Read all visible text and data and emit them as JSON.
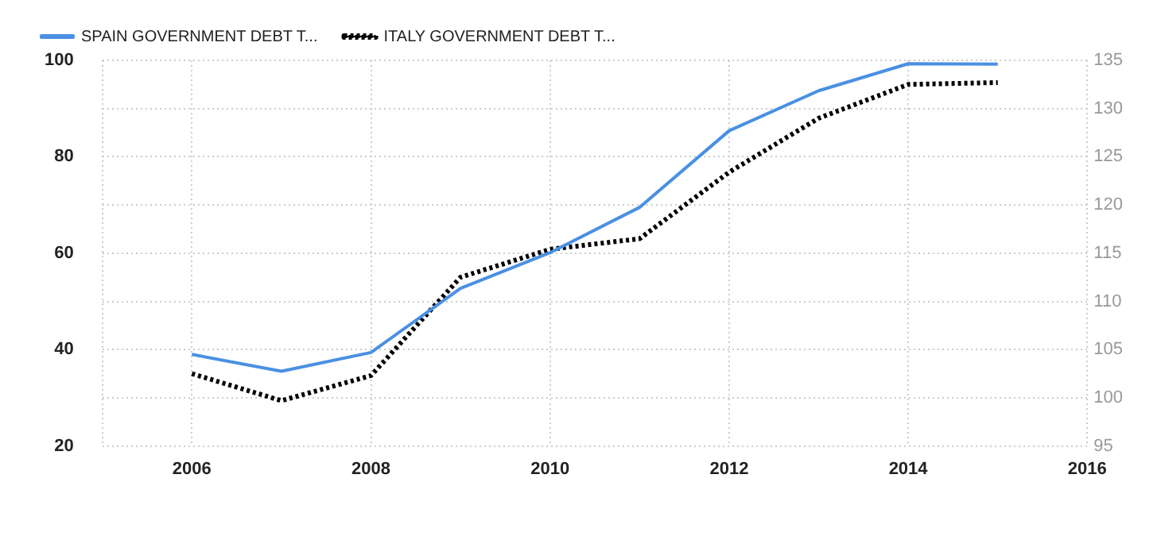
{
  "chart_data": {
    "type": "line",
    "x": [
      2006,
      2007,
      2008,
      2009,
      2010,
      2011,
      2012,
      2013,
      2014,
      2015
    ],
    "series": [
      {
        "name": "SPAIN GOVERNMENT DEBT T...",
        "color": "#4a90e2",
        "line_style": "solid",
        "values": [
          39.0,
          35.5,
          39.4,
          52.7,
          60.1,
          69.5,
          85.4,
          93.7,
          99.3,
          99.2
        ]
      },
      {
        "name": "ITALY GOVERNMENT DEBT T...",
        "color": "#000000",
        "line_style": "dotted",
        "axis": "y2",
        "values": [
          102.5,
          99.7,
          102.3,
          112.5,
          115.4,
          116.5,
          123.4,
          129.0,
          132.5,
          132.7
        ]
      }
    ],
    "xlim": [
      2005,
      2016
    ],
    "xticks": [
      {
        "value": 2005,
        "label": null
      },
      2006,
      2008,
      2010,
      2012,
      2014,
      2016
    ],
    "ylim": [
      20,
      100
    ],
    "yticks": [
      20,
      {
        "value": 30,
        "label": null
      },
      40,
      {
        "value": 50,
        "label": null
      },
      60,
      {
        "value": 70,
        "label": null
      },
      80,
      {
        "value": 90,
        "label": null
      },
      100
    ],
    "y2lim": [
      95,
      135
    ],
    "y2ticks": [
      95,
      100,
      105,
      110,
      115,
      120,
      125,
      130,
      135
    ],
    "grid": true,
    "legend": "top left",
    "marker": "none"
  }
}
